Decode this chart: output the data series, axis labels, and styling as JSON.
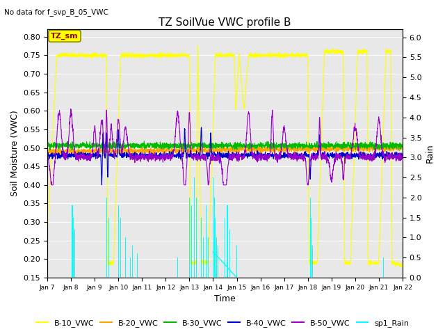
{
  "title": "TZ SoilVue VWC profile B",
  "subtitle": "No data for f_svp_B_05_VWC",
  "xlabel": "Time",
  "ylabel_left": "Soil Moisture (VWC)",
  "ylabel_right": "Rain",
  "ylim_left": [
    0.15,
    0.82
  ],
  "ylim_right": [
    0.0,
    6.2
  ],
  "yticks_left": [
    0.15,
    0.2,
    0.25,
    0.3,
    0.35,
    0.4,
    0.45,
    0.5,
    0.55,
    0.6,
    0.65,
    0.7,
    0.75,
    0.8
  ],
  "yticks_right": [
    0.0,
    0.5,
    1.0,
    1.5,
    2.0,
    2.5,
    3.0,
    3.5,
    4.0,
    4.5,
    5.0,
    5.5,
    6.0
  ],
  "colors": {
    "B10": "#ffff00",
    "B20": "#ffa500",
    "B30": "#00bb00",
    "B40": "#0000cc",
    "B50": "#9900cc",
    "rain": "#00ffff",
    "TZ_sm_bg": "#ffff00",
    "TZ_sm_text": "#990000"
  },
  "bg_color": "#e8e8e8",
  "legend_entries": [
    "B-10_VWC",
    "B-20_VWC",
    "B-30_VWC",
    "B-40_VWC",
    "B-50_VWC",
    "sp1_Rain"
  ],
  "figsize": [
    6.4,
    4.8
  ],
  "dpi": 100,
  "title_fontsize": 11,
  "axis_fontsize": 9,
  "tick_fontsize": 8,
  "legend_fontsize": 8
}
